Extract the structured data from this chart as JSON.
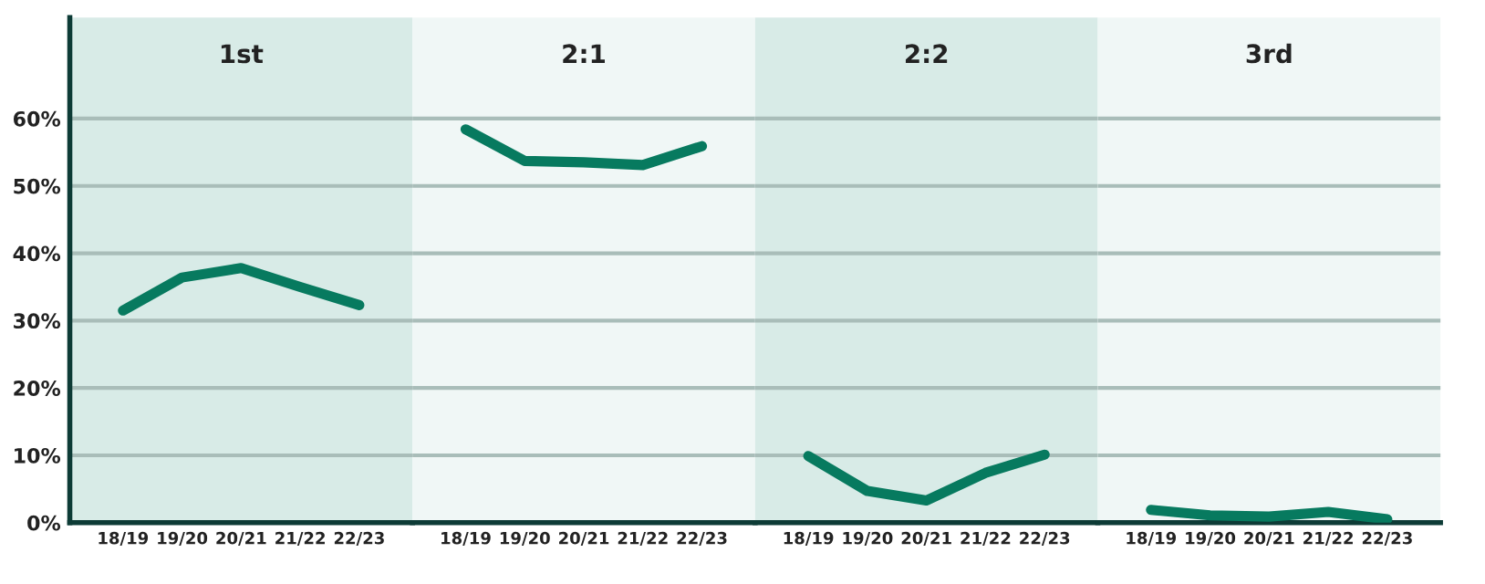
{
  "chart_data": [
    {
      "type": "line",
      "title": "1st",
      "categories": [
        "18/19",
        "19/20",
        "20/21",
        "21/22",
        "22/23"
      ],
      "series": [
        {
          "color": "#077a5f",
          "values": [
            31.5,
            36.4,
            37.8,
            35,
            32.3
          ]
        }
      ],
      "ylim": [
        0,
        75
      ],
      "yticks": [
        {
          "value": 0,
          "label": "0%"
        },
        {
          "value": 10,
          "label": "10%"
        },
        {
          "value": 20,
          "label": "20%"
        },
        {
          "value": 30,
          "label": "30%"
        },
        {
          "value": 40,
          "label": "40%"
        },
        {
          "value": 50,
          "label": "50%"
        },
        {
          "value": 60,
          "label": "60%"
        }
      ],
      "grid": "y"
    },
    {
      "type": "line",
      "title": "2:1",
      "categories": [
        "18/19",
        "19/20",
        "20/21",
        "21/22",
        "22/23"
      ],
      "series": [
        {
          "color": "#077a5f",
          "values": [
            58.4,
            53.7,
            53.5,
            53.1,
            55.9
          ]
        }
      ],
      "ylim": [
        0,
        75
      ],
      "yticks": [
        0,
        10,
        20,
        30,
        40,
        50,
        60
      ],
      "grid": "y",
      "tick_labels": "x"
    },
    {
      "type": "line",
      "title": "2:2",
      "categories": [
        "18/19",
        "19/20",
        "20/21",
        "21/22",
        "22/23"
      ],
      "series": [
        {
          "color": "#077a5f",
          "values": [
            9.9,
            4.7,
            3.3,
            7.4,
            10.1
          ]
        }
      ],
      "ylim": [
        0,
        75
      ],
      "yticks": [
        0,
        10,
        20,
        30,
        40,
        50,
        60
      ],
      "grid": "y",
      "tick_labels": "x"
    },
    {
      "type": "line",
      "title": "3rd",
      "categories": [
        "18/19",
        "19/20",
        "20/21",
        "21/22",
        "22/23"
      ],
      "series": [
        {
          "color": "#077a5f",
          "values": [
            1.9,
            1.1,
            0.9,
            1.6,
            0.5
          ]
        }
      ],
      "ylim": [
        0,
        75
      ],
      "yticks": [
        0,
        10,
        20,
        30,
        40,
        50,
        60
      ],
      "grid": "y",
      "tick_labels": "x"
    }
  ]
}
